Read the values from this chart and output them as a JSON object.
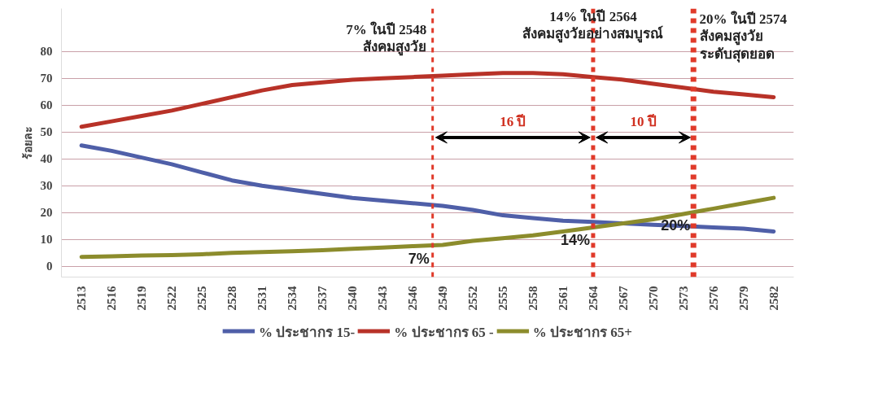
{
  "chart_data": {
    "type": "line",
    "ylabel": "ร้อยละ",
    "x": [
      2513,
      2516,
      2519,
      2522,
      2525,
      2528,
      2531,
      2534,
      2537,
      2540,
      2543,
      2546,
      2549,
      2552,
      2555,
      2558,
      2561,
      2564,
      2567,
      2570,
      2573,
      2576,
      2579,
      2582
    ],
    "series": [
      {
        "name": "% ประชากร 15-",
        "color": "#4f5fa8",
        "values": [
          45,
          43,
          40.5,
          38,
          35,
          32,
          30,
          28.5,
          27,
          25.5,
          24.5,
          23.5,
          22.5,
          21,
          19,
          18,
          17,
          16.5,
          16,
          15.5,
          15,
          14.5,
          14,
          13
        ]
      },
      {
        "name": "% ประชากร 65 -",
        "color": "#b83228",
        "values": [
          52,
          54,
          56,
          58,
          60.5,
          63,
          65.5,
          67.5,
          68.5,
          69.5,
          70,
          70.5,
          71,
          71.5,
          72,
          72,
          71.5,
          70.5,
          69.5,
          68,
          66.5,
          65,
          64,
          63
        ]
      },
      {
        "name": "% ประชากร 65+",
        "color": "#8c8c2c",
        "values": [
          3.5,
          3.7,
          4,
          4.2,
          4.5,
          5,
          5.3,
          5.6,
          6,
          6.5,
          7,
          7.5,
          8,
          9.5,
          10.5,
          11.5,
          13,
          14.5,
          16,
          17.5,
          19.5,
          21.5,
          23.5,
          25.5
        ]
      }
    ],
    "xlim": [
      2511,
      2584
    ],
    "ylim": [
      -4,
      96
    ],
    "xticks": [
      2513,
      2516,
      2519,
      2522,
      2525,
      2528,
      2531,
      2534,
      2537,
      2540,
      2543,
      2546,
      2549,
      2552,
      2555,
      2558,
      2561,
      2564,
      2567,
      2570,
      2573,
      2576,
      2579,
      2582
    ],
    "yticks": [
      0,
      10,
      20,
      30,
      40,
      50,
      60,
      70,
      80
    ],
    "grid": "y",
    "legend": "bottom",
    "line_style": "solid",
    "marker": "none",
    "ref_lines": [
      {
        "axis": "x",
        "value": 2548,
        "label": "7% ในปี 2548\nสังคมสูงวัย",
        "color": "#e03a2a",
        "line_style": "dashed"
      },
      {
        "axis": "x",
        "value": 2564,
        "label": "14% ในปี 2564\nสังคมสูงวัยอย่างสมบูรณ์",
        "color": "#e03a2a",
        "line_style": "dashed"
      },
      {
        "axis": "x",
        "value": 2574,
        "label": "20% ในปี 2574\nสังคมสูงวัย\nระดับสุดยอด",
        "color": "#e03a2a",
        "line_style": "dashed"
      }
    ],
    "annotations": [
      "16 ปี",
      "10 ปี",
      {
        "text": "7%",
        "x": 2548,
        "y": 7.8
      },
      {
        "text": "14%",
        "x": 2564,
        "y": 14.5
      },
      {
        "text": "20%",
        "x": 2574,
        "y": 20
      }
    ]
  }
}
